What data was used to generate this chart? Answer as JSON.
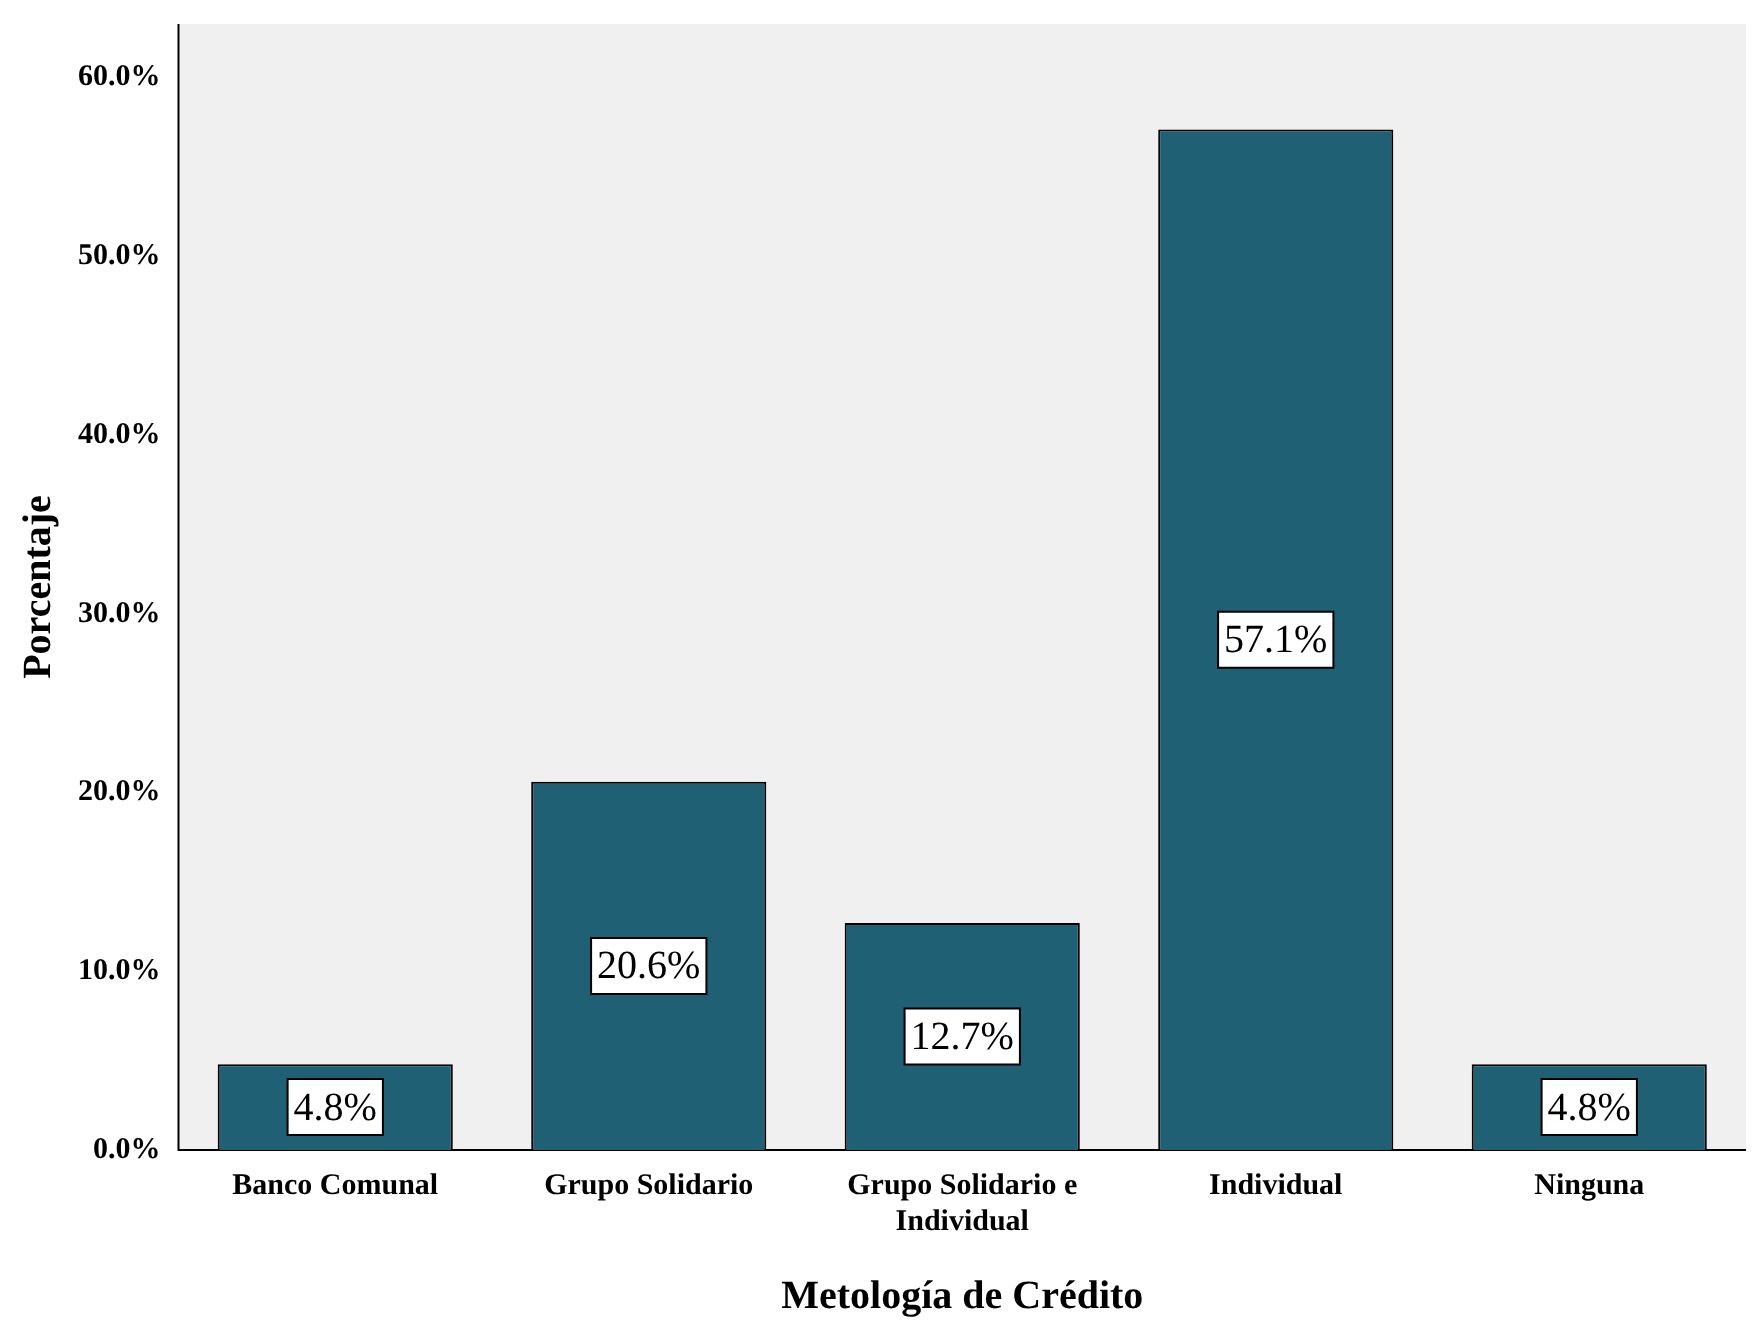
{
  "chart_data": {
    "type": "bar",
    "xlabel": "Metología de Crédito",
    "ylabel": "Porcentaje",
    "categories": [
      "Banco Comunal",
      "Grupo Solidario",
      "Grupo Solidario e Individual",
      "Individual",
      "Ninguna"
    ],
    "values": [
      4.8,
      20.6,
      12.7,
      57.1,
      4.8
    ],
    "value_labels": [
      "4.8%",
      "20.6%",
      "12.7%",
      "57.1%",
      "4.8%"
    ],
    "color": "#1f6075",
    "ylim": [
      0,
      63
    ],
    "yticks": [
      {
        "value": 0,
        "label": "0.0%"
      },
      {
        "value": 10,
        "label": "10.0%"
      },
      {
        "value": 20,
        "label": "20.0%"
      },
      {
        "value": 30,
        "label": "30.0%"
      },
      {
        "value": 40,
        "label": "40.0%"
      },
      {
        "value": 50,
        "label": "50.0%"
      },
      {
        "value": 60,
        "label": "60.0%"
      }
    ],
    "grid": false,
    "legend": false
  }
}
